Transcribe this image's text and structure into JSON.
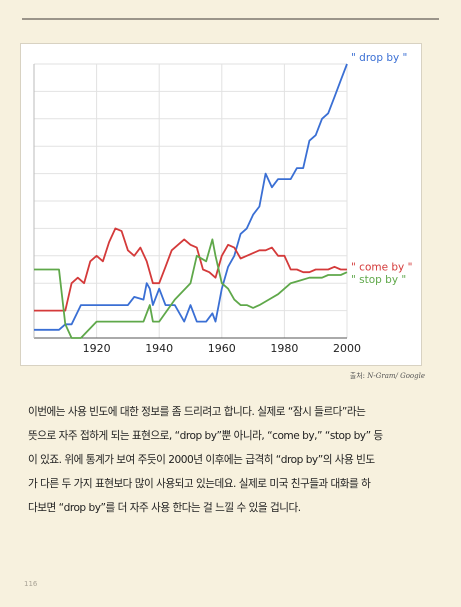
{
  "page_number": "116",
  "credit": {
    "label": "출처:",
    "source": "N-Gram/ Google"
  },
  "body_text": [
    "이번에는 사용 빈도에 대한 정보를 좀 드리려고 합니다. 실제로 “잠시 들르다”라는",
    "뜻으로 자주 접하게 되는 표현으로, “drop by”뿐 아니라, “come by,” “stop by” 등",
    "이 있죠. 위에 통계가 보여 주듯이 2000년 이후에는 급격히 “drop by”의 사용 빈도",
    "가 다른 두 가지 표현보다 많이 사용되고 있는데요. 실제로 미국 친구들과 대화를 하",
    "다보면 “drop by”를 더 자주 사용 한다는 걸 느낄 수 있을 겁니다."
  ],
  "chart_data": {
    "type": "line",
    "title": "",
    "xlabel": "",
    "ylabel": "",
    "xlim": [
      1900,
      2000
    ],
    "ylim": [
      0,
      100
    ],
    "xticks": [
      1920,
      1940,
      1960,
      1980,
      2000
    ],
    "grid": true,
    "legend": "right-edge labels",
    "series": [
      {
        "name": "\" drop by \"",
        "color": "#3a6fd4",
        "x": [
          1900,
          1905,
          1908,
          1910,
          1912,
          1915,
          1918,
          1920,
          1925,
          1930,
          1932,
          1935,
          1936,
          1937,
          1938,
          1940,
          1942,
          1945,
          1948,
          1950,
          1952,
          1955,
          1957,
          1958,
          1959,
          1960,
          1962,
          1964,
          1966,
          1968,
          1970,
          1972,
          1974,
          1976,
          1978,
          1980,
          1982,
          1984,
          1986,
          1988,
          1990,
          1992,
          1994,
          1996,
          1998,
          2000
        ],
        "y": [
          3,
          3,
          3,
          5,
          5,
          12,
          12,
          12,
          12,
          12,
          15,
          14,
          20,
          18,
          12,
          18,
          12,
          12,
          6,
          12,
          6,
          6,
          9,
          6,
          12,
          18,
          26,
          30,
          38,
          40,
          45,
          48,
          60,
          55,
          58,
          58,
          58,
          62,
          62,
          72,
          74,
          80,
          82,
          88,
          94,
          100
        ]
      },
      {
        "name": "\" come by \"",
        "color": "#d43a3a",
        "x": [
          1900,
          1905,
          1908,
          1910,
          1912,
          1914,
          1916,
          1918,
          1920,
          1922,
          1924,
          1926,
          1928,
          1930,
          1932,
          1934,
          1936,
          1938,
          1940,
          1942,
          1944,
          1946,
          1948,
          1950,
          1952,
          1954,
          1956,
          1958,
          1960,
          1962,
          1964,
          1966,
          1968,
          1970,
          1972,
          1974,
          1976,
          1978,
          1980,
          1982,
          1984,
          1986,
          1988,
          1990,
          1992,
          1994,
          1996,
          1998,
          2000
        ],
        "y": [
          10,
          10,
          10,
          10,
          20,
          22,
          20,
          28,
          30,
          28,
          35,
          40,
          39,
          32,
          30,
          33,
          28,
          20,
          20,
          26,
          32,
          34,
          36,
          34,
          33,
          25,
          24,
          22,
          30,
          34,
          33,
          29,
          30,
          31,
          32,
          32,
          33,
          30,
          30,
          25,
          25,
          24,
          24,
          25,
          25,
          25,
          26,
          25,
          25
        ]
      },
      {
        "name": "\" stop by \"",
        "color": "#5fa84a",
        "x": [
          1900,
          1905,
          1908,
          1910,
          1912,
          1915,
          1920,
          1925,
          1930,
          1935,
          1937,
          1938,
          1940,
          1945,
          1950,
          1952,
          1955,
          1957,
          1958,
          1960,
          1962,
          1964,
          1966,
          1968,
          1970,
          1972,
          1975,
          1978,
          1980,
          1982,
          1985,
          1988,
          1990,
          1992,
          1994,
          1996,
          1998,
          2000
        ],
        "y": [
          25,
          25,
          25,
          5,
          0,
          0,
          6,
          6,
          6,
          6,
          12,
          6,
          6,
          14,
          20,
          30,
          28,
          36,
          30,
          20,
          18,
          14,
          12,
          12,
          11,
          12,
          14,
          16,
          18,
          20,
          21,
          22,
          22,
          22,
          23,
          23,
          23,
          24
        ]
      }
    ]
  }
}
